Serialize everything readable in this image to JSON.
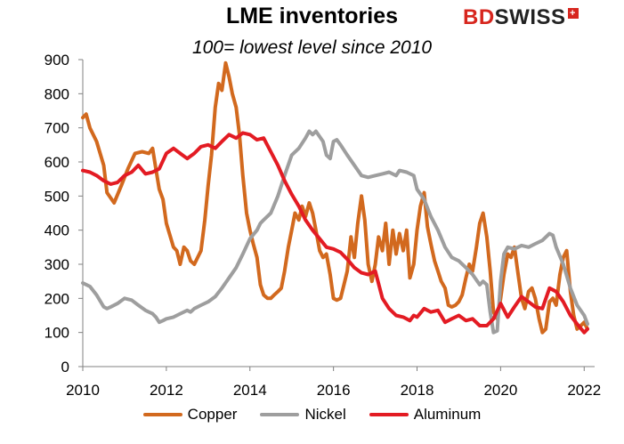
{
  "colors": {
    "copper": "#d2691e",
    "nickel": "#9e9e9e",
    "aluminum": "#e31b23"
  },
  "logo": {
    "bd": "BD",
    "swiss": "SWISS",
    "plus": "+"
  },
  "chart_data": {
    "type": "line",
    "title": "LME inventories",
    "subtitle": "100= lowest level since 2010",
    "xlabel": "",
    "ylabel": "",
    "xlim": [
      2010,
      2022.25
    ],
    "ylim": [
      0,
      900
    ],
    "xticks": [
      2010,
      2012,
      2014,
      2016,
      2018,
      2020,
      2022
    ],
    "yticks": [
      0,
      100,
      200,
      300,
      400,
      500,
      600,
      700,
      800,
      900
    ],
    "grid": false,
    "legend_position": "bottom",
    "series": [
      {
        "name": "Copper",
        "color": "#d2691e",
        "points": [
          [
            2010.0,
            730
          ],
          [
            2010.08,
            740
          ],
          [
            2010.17,
            700
          ],
          [
            2010.33,
            660
          ],
          [
            2010.5,
            590
          ],
          [
            2010.58,
            510
          ],
          [
            2010.75,
            480
          ],
          [
            2010.92,
            530
          ],
          [
            2011.08,
            580
          ],
          [
            2011.25,
            625
          ],
          [
            2011.42,
            630
          ],
          [
            2011.58,
            625
          ],
          [
            2011.67,
            640
          ],
          [
            2011.75,
            580
          ],
          [
            2011.83,
            520
          ],
          [
            2011.92,
            490
          ],
          [
            2012.0,
            420
          ],
          [
            2012.17,
            350
          ],
          [
            2012.25,
            340
          ],
          [
            2012.33,
            300
          ],
          [
            2012.42,
            350
          ],
          [
            2012.5,
            340
          ],
          [
            2012.58,
            310
          ],
          [
            2012.67,
            300
          ],
          [
            2012.75,
            320
          ],
          [
            2012.83,
            340
          ],
          [
            2012.92,
            430
          ],
          [
            2013.0,
            530
          ],
          [
            2013.08,
            620
          ],
          [
            2013.17,
            760
          ],
          [
            2013.25,
            830
          ],
          [
            2013.33,
            810
          ],
          [
            2013.42,
            890
          ],
          [
            2013.5,
            850
          ],
          [
            2013.58,
            800
          ],
          [
            2013.67,
            760
          ],
          [
            2013.75,
            680
          ],
          [
            2013.83,
            560
          ],
          [
            2013.92,
            450
          ],
          [
            2014.0,
            400
          ],
          [
            2014.08,
            360
          ],
          [
            2014.17,
            320
          ],
          [
            2014.25,
            240
          ],
          [
            2014.33,
            210
          ],
          [
            2014.42,
            200
          ],
          [
            2014.5,
            200
          ],
          [
            2014.58,
            210
          ],
          [
            2014.67,
            220
          ],
          [
            2014.75,
            230
          ],
          [
            2014.83,
            280
          ],
          [
            2014.92,
            350
          ],
          [
            2015.0,
            400
          ],
          [
            2015.08,
            450
          ],
          [
            2015.17,
            430
          ],
          [
            2015.25,
            470
          ],
          [
            2015.33,
            440
          ],
          [
            2015.42,
            480
          ],
          [
            2015.5,
            450
          ],
          [
            2015.58,
            400
          ],
          [
            2015.67,
            340
          ],
          [
            2015.75,
            320
          ],
          [
            2015.83,
            330
          ],
          [
            2015.92,
            270
          ],
          [
            2016.0,
            200
          ],
          [
            2016.08,
            195
          ],
          [
            2016.17,
            200
          ],
          [
            2016.25,
            240
          ],
          [
            2016.33,
            280
          ],
          [
            2016.42,
            380
          ],
          [
            2016.5,
            320
          ],
          [
            2016.58,
            420
          ],
          [
            2016.67,
            500
          ],
          [
            2016.75,
            430
          ],
          [
            2016.83,
            300
          ],
          [
            2016.92,
            250
          ],
          [
            2017.0,
            300
          ],
          [
            2017.08,
            380
          ],
          [
            2017.17,
            340
          ],
          [
            2017.25,
            420
          ],
          [
            2017.33,
            300
          ],
          [
            2017.42,
            400
          ],
          [
            2017.5,
            330
          ],
          [
            2017.58,
            390
          ],
          [
            2017.67,
            340
          ],
          [
            2017.75,
            400
          ],
          [
            2017.83,
            260
          ],
          [
            2017.92,
            300
          ],
          [
            2018.0,
            400
          ],
          [
            2018.08,
            470
          ],
          [
            2018.17,
            510
          ],
          [
            2018.25,
            410
          ],
          [
            2018.33,
            360
          ],
          [
            2018.42,
            310
          ],
          [
            2018.5,
            280
          ],
          [
            2018.58,
            250
          ],
          [
            2018.67,
            230
          ],
          [
            2018.75,
            180
          ],
          [
            2018.83,
            175
          ],
          [
            2018.92,
            180
          ],
          [
            2019.0,
            190
          ],
          [
            2019.08,
            210
          ],
          [
            2019.17,
            260
          ],
          [
            2019.25,
            300
          ],
          [
            2019.33,
            280
          ],
          [
            2019.42,
            350
          ],
          [
            2019.5,
            420
          ],
          [
            2019.58,
            450
          ],
          [
            2019.67,
            380
          ],
          [
            2019.75,
            280
          ],
          [
            2019.83,
            160
          ],
          [
            2019.92,
            140
          ],
          [
            2020.0,
            200
          ],
          [
            2020.08,
            270
          ],
          [
            2020.17,
            330
          ],
          [
            2020.25,
            320
          ],
          [
            2020.33,
            350
          ],
          [
            2020.42,
            270
          ],
          [
            2020.5,
            200
          ],
          [
            2020.58,
            170
          ],
          [
            2020.67,
            220
          ],
          [
            2020.75,
            230
          ],
          [
            2020.83,
            200
          ],
          [
            2020.92,
            140
          ],
          [
            2021.0,
            100
          ],
          [
            2021.08,
            110
          ],
          [
            2021.17,
            190
          ],
          [
            2021.25,
            200
          ],
          [
            2021.33,
            180
          ],
          [
            2021.42,
            270
          ],
          [
            2021.5,
            320
          ],
          [
            2021.58,
            340
          ],
          [
            2021.67,
            220
          ],
          [
            2021.75,
            150
          ],
          [
            2021.83,
            110
          ],
          [
            2021.92,
            120
          ],
          [
            2022.0,
            130
          ],
          [
            2022.08,
            110
          ]
        ]
      },
      {
        "name": "Nickel",
        "color": "#9e9e9e",
        "points": [
          [
            2010.0,
            245
          ],
          [
            2010.17,
            235
          ],
          [
            2010.33,
            210
          ],
          [
            2010.5,
            175
          ],
          [
            2010.58,
            170
          ],
          [
            2010.67,
            175
          ],
          [
            2010.83,
            185
          ],
          [
            2011.0,
            200
          ],
          [
            2011.17,
            195
          ],
          [
            2011.33,
            180
          ],
          [
            2011.5,
            165
          ],
          [
            2011.67,
            155
          ],
          [
            2011.75,
            145
          ],
          [
            2011.83,
            130
          ],
          [
            2011.92,
            135
          ],
          [
            2012.0,
            140
          ],
          [
            2012.17,
            145
          ],
          [
            2012.33,
            155
          ],
          [
            2012.5,
            165
          ],
          [
            2012.58,
            160
          ],
          [
            2012.67,
            170
          ],
          [
            2012.83,
            180
          ],
          [
            2013.0,
            190
          ],
          [
            2013.17,
            205
          ],
          [
            2013.33,
            230
          ],
          [
            2013.5,
            260
          ],
          [
            2013.67,
            290
          ],
          [
            2013.83,
            330
          ],
          [
            2014.0,
            375
          ],
          [
            2014.17,
            400
          ],
          [
            2014.25,
            420
          ],
          [
            2014.33,
            430
          ],
          [
            2014.5,
            450
          ],
          [
            2014.67,
            500
          ],
          [
            2014.83,
            560
          ],
          [
            2015.0,
            620
          ],
          [
            2015.17,
            640
          ],
          [
            2015.33,
            670
          ],
          [
            2015.42,
            690
          ],
          [
            2015.5,
            680
          ],
          [
            2015.58,
            690
          ],
          [
            2015.75,
            660
          ],
          [
            2015.83,
            620
          ],
          [
            2015.92,
            610
          ],
          [
            2016.0,
            660
          ],
          [
            2016.08,
            665
          ],
          [
            2016.17,
            650
          ],
          [
            2016.33,
            620
          ],
          [
            2016.5,
            590
          ],
          [
            2016.67,
            560
          ],
          [
            2016.83,
            555
          ],
          [
            2017.0,
            560
          ],
          [
            2017.17,
            565
          ],
          [
            2017.33,
            570
          ],
          [
            2017.5,
            560
          ],
          [
            2017.58,
            575
          ],
          [
            2017.75,
            570
          ],
          [
            2017.92,
            560
          ],
          [
            2018.0,
            520
          ],
          [
            2018.17,
            490
          ],
          [
            2018.33,
            440
          ],
          [
            2018.5,
            400
          ],
          [
            2018.67,
            350
          ],
          [
            2018.83,
            320
          ],
          [
            2019.0,
            310
          ],
          [
            2019.17,
            290
          ],
          [
            2019.33,
            270
          ],
          [
            2019.5,
            240
          ],
          [
            2019.58,
            250
          ],
          [
            2019.67,
            240
          ],
          [
            2019.75,
            160
          ],
          [
            2019.83,
            100
          ],
          [
            2019.92,
            105
          ],
          [
            2020.0,
            250
          ],
          [
            2020.08,
            330
          ],
          [
            2020.17,
            350
          ],
          [
            2020.33,
            345
          ],
          [
            2020.5,
            355
          ],
          [
            2020.67,
            350
          ],
          [
            2020.83,
            360
          ],
          [
            2021.0,
            370
          ],
          [
            2021.17,
            390
          ],
          [
            2021.25,
            385
          ],
          [
            2021.33,
            350
          ],
          [
            2021.5,
            300
          ],
          [
            2021.67,
            230
          ],
          [
            2021.83,
            180
          ],
          [
            2022.0,
            150
          ],
          [
            2022.08,
            125
          ]
        ]
      },
      {
        "name": "Aluminum",
        "color": "#e31b23",
        "points": [
          [
            2010.0,
            575
          ],
          [
            2010.17,
            570
          ],
          [
            2010.33,
            560
          ],
          [
            2010.5,
            545
          ],
          [
            2010.67,
            535
          ],
          [
            2010.83,
            540
          ],
          [
            2011.0,
            560
          ],
          [
            2011.17,
            570
          ],
          [
            2011.33,
            590
          ],
          [
            2011.5,
            565
          ],
          [
            2011.67,
            570
          ],
          [
            2011.83,
            580
          ],
          [
            2012.0,
            625
          ],
          [
            2012.17,
            640
          ],
          [
            2012.33,
            625
          ],
          [
            2012.5,
            610
          ],
          [
            2012.67,
            625
          ],
          [
            2012.83,
            645
          ],
          [
            2013.0,
            650
          ],
          [
            2013.17,
            640
          ],
          [
            2013.33,
            660
          ],
          [
            2013.5,
            680
          ],
          [
            2013.67,
            670
          ],
          [
            2013.83,
            685
          ],
          [
            2014.0,
            680
          ],
          [
            2014.17,
            665
          ],
          [
            2014.33,
            670
          ],
          [
            2014.5,
            630
          ],
          [
            2014.67,
            590
          ],
          [
            2014.83,
            545
          ],
          [
            2015.0,
            505
          ],
          [
            2015.17,
            470
          ],
          [
            2015.33,
            430
          ],
          [
            2015.5,
            400
          ],
          [
            2015.67,
            375
          ],
          [
            2015.83,
            350
          ],
          [
            2016.0,
            345
          ],
          [
            2016.17,
            335
          ],
          [
            2016.33,
            315
          ],
          [
            2016.5,
            290
          ],
          [
            2016.67,
            275
          ],
          [
            2016.83,
            270
          ],
          [
            2017.0,
            280
          ],
          [
            2017.17,
            200
          ],
          [
            2017.33,
            170
          ],
          [
            2017.5,
            150
          ],
          [
            2017.67,
            145
          ],
          [
            2017.83,
            135
          ],
          [
            2017.92,
            150
          ],
          [
            2018.0,
            145
          ],
          [
            2018.17,
            170
          ],
          [
            2018.33,
            160
          ],
          [
            2018.5,
            165
          ],
          [
            2018.67,
            130
          ],
          [
            2018.83,
            140
          ],
          [
            2019.0,
            150
          ],
          [
            2019.17,
            135
          ],
          [
            2019.33,
            140
          ],
          [
            2019.5,
            120
          ],
          [
            2019.67,
            120
          ],
          [
            2019.83,
            140
          ],
          [
            2020.0,
            185
          ],
          [
            2020.17,
            145
          ],
          [
            2020.33,
            175
          ],
          [
            2020.5,
            205
          ],
          [
            2020.67,
            190
          ],
          [
            2020.83,
            175
          ],
          [
            2021.0,
            170
          ],
          [
            2021.17,
            230
          ],
          [
            2021.33,
            220
          ],
          [
            2021.5,
            190
          ],
          [
            2021.67,
            150
          ],
          [
            2021.83,
            125
          ],
          [
            2022.0,
            100
          ],
          [
            2022.08,
            110
          ]
        ]
      }
    ]
  }
}
